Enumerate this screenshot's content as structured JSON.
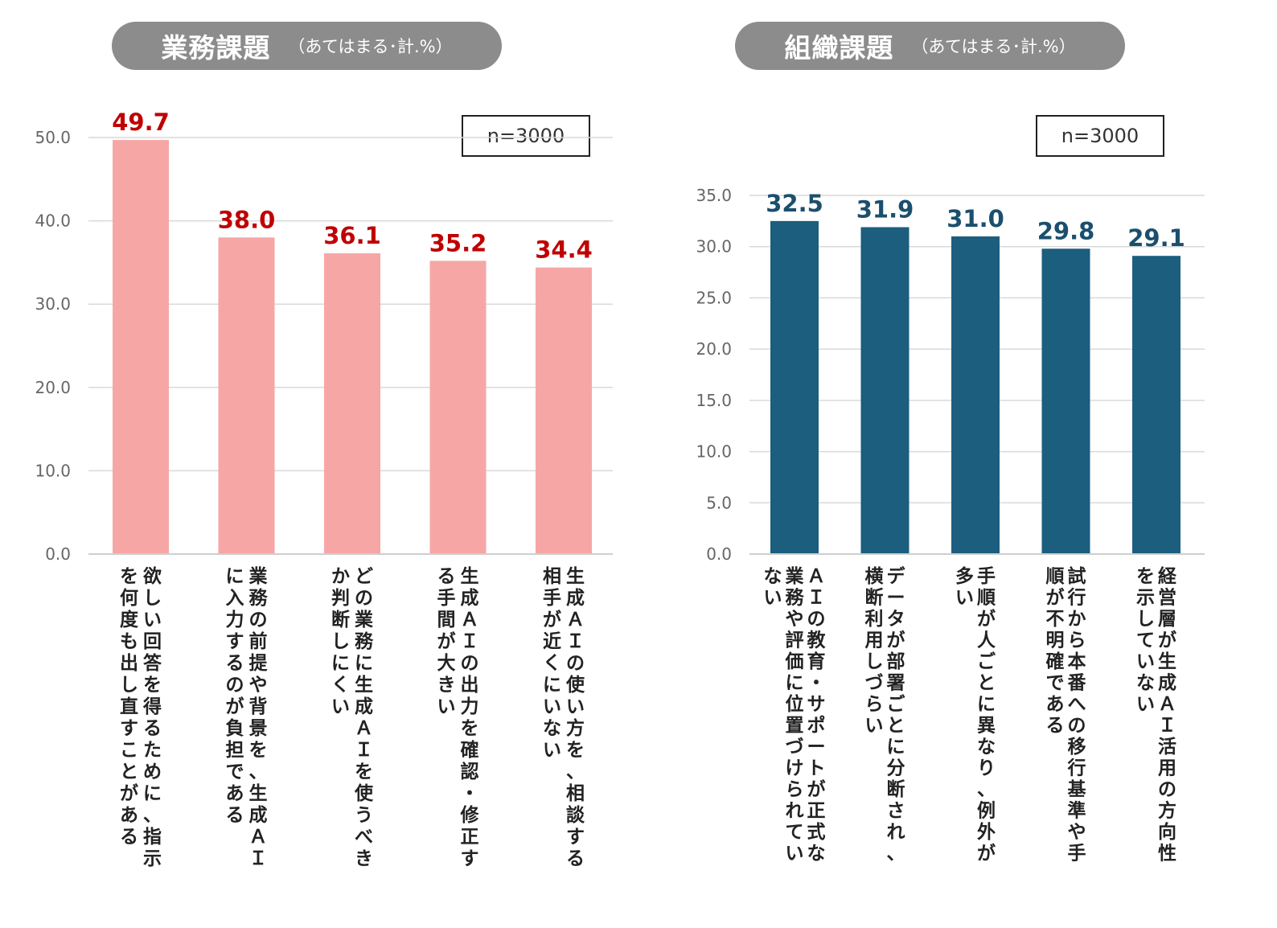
{
  "chart_data": [
    {
      "type": "bar",
      "title": "業務課題",
      "subtitle": "（あてはまる･計.%）",
      "note": "n=3000",
      "color": "#f7a6a6",
      "label_color": "#c00000",
      "ylim": [
        0,
        50
      ],
      "yticks": [
        "0.0",
        "10.0",
        "20.0",
        "30.0",
        "40.0",
        "50.0"
      ],
      "grid": true,
      "categories": [
        "欲しい回答を得るために、指示を何度も出し直すことがある",
        "業務の前提や背景を、生成ＡＩに入力するのが負担である",
        "どの業務に生成ＡＩを使うべきか判断しにくい",
        "生成ＡＩの出力を確認・修正する手間が大きい",
        "生成ＡＩの使い方を、相談する相手が近くにいない"
      ],
      "values": [
        49.7,
        38.0,
        36.1,
        35.2,
        34.4
      ],
      "value_labels": [
        "49.7",
        "38.0",
        "36.1",
        "35.2",
        "34.4"
      ]
    },
    {
      "type": "bar",
      "title": "組織課題",
      "subtitle": "（あてはまる･計.%）",
      "note": "n=3000",
      "color": "#1b5e7e",
      "label_color": "#1b4f6e",
      "ylim": [
        0,
        35
      ],
      "yticks": [
        "0.0",
        "5.0",
        "10.0",
        "15.0",
        "20.0",
        "25.0",
        "30.0",
        "35.0"
      ],
      "grid": true,
      "categories": [
        "ＡＩの教育・サポートが正式な業務や評価に位置づけられていない",
        "データが部署ごとに分断され、横断利用しづらい",
        "手順が人ごとに異なり、例外が多い",
        "試行から本番への移行基準や手順が不明確である",
        "経営層が生成ＡＩ活用の方向性を示していない"
      ],
      "values": [
        32.5,
        31.9,
        31.0,
        29.8,
        29.1
      ],
      "value_labels": [
        "32.5",
        "31.9",
        "31.0",
        "29.8",
        "29.1"
      ]
    }
  ]
}
